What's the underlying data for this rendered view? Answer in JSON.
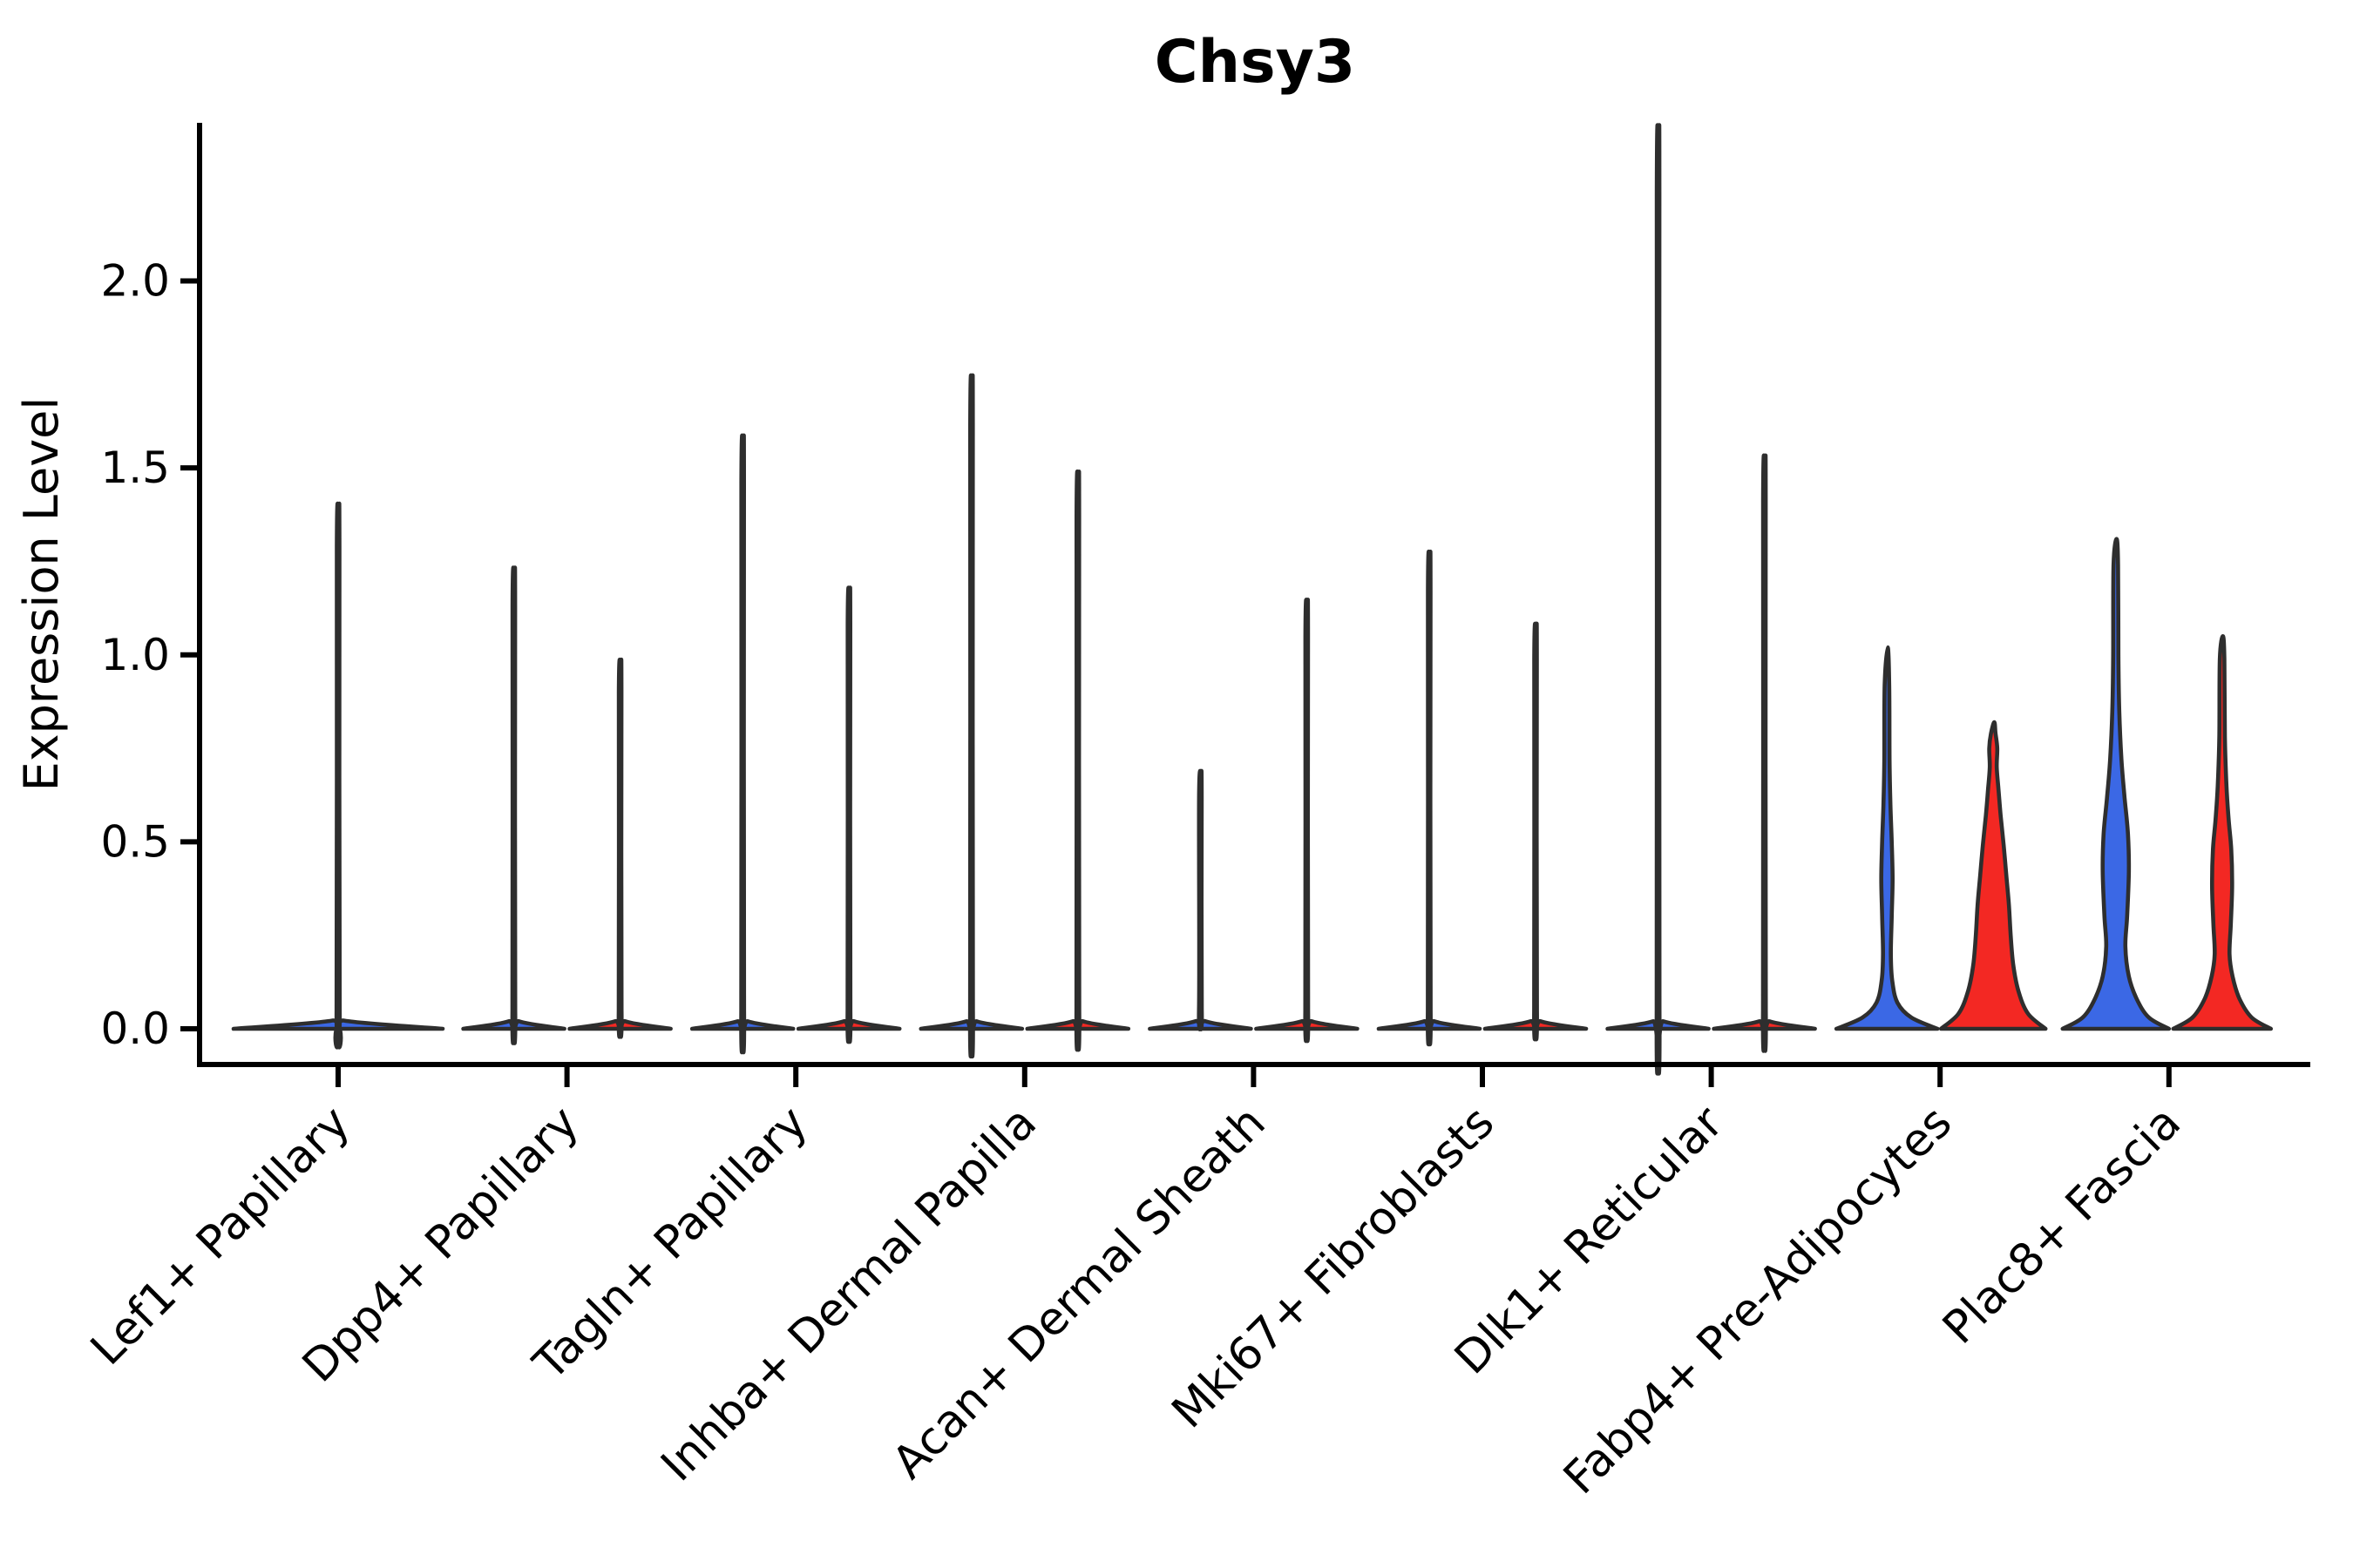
{
  "chart_data": {
    "type": "violin",
    "title": "Chsy3",
    "ylabel": "Expression Level",
    "xlabel": "",
    "ylim": [
      -0.0955,
      2.423
    ],
    "yticks": [
      {
        "value": 0.0,
        "label": "0.0"
      },
      {
        "value": 0.5,
        "label": "0.5"
      },
      {
        "value": 1.0,
        "label": "1.0"
      },
      {
        "value": 1.5,
        "label": "1.5"
      },
      {
        "value": 2.0,
        "label": "2.0"
      }
    ],
    "categories": [
      "Lef1+ Papillary",
      "Dpp4+ Papillary",
      "Tagln+ Papillary",
      "Inhba+ Dermal Papilla",
      "Acan+ Dermal Sheath",
      "Mki67+ Fibroblasts",
      "Dlk1+ Reticular",
      "Fabp4+ Pre-Adipocytes",
      "Plac8+ Fascia"
    ],
    "groups": [
      {
        "id": "blue",
        "color": "#3B68E5"
      },
      {
        "id": "red",
        "color": "#F32823"
      }
    ],
    "outline_color": "#2E2E2E",
    "grid": false,
    "legend": "none",
    "series": [
      {
        "name": "group-1 (blue)",
        "max_expression": [
          1.35,
          1.19,
          1.52,
          1.67,
          0.68,
          1.23,
          2.3,
          1.02,
          1.31
        ]
      },
      {
        "name": "group-2 (red)",
        "max_expression": [
          null,
          0.96,
          1.14,
          1.43,
          1.11,
          1.05,
          1.47,
          0.82,
          1.05
        ]
      }
    ],
    "violins": [
      {
        "category": "Lef1+ Papillary",
        "group": "blue",
        "single": true,
        "peak": 1.35,
        "profile": [
          [
            0,
            120
          ],
          [
            0.022,
            7
          ],
          [
            0.05,
            1.8
          ],
          [
            1.29,
            1.5
          ],
          [
            1.35,
            0.8
          ]
        ]
      },
      {
        "category": "Dpp4+ Papillary",
        "group": "blue",
        "peak": 1.19,
        "profile": [
          [
            0,
            58
          ],
          [
            0.02,
            6
          ],
          [
            0.05,
            1.6
          ],
          [
            1.13,
            1.5
          ],
          [
            1.19,
            0.8
          ]
        ]
      },
      {
        "category": "Dpp4+ Papillary",
        "group": "red",
        "peak": 0.96,
        "profile": [
          [
            0,
            58
          ],
          [
            0.02,
            6
          ],
          [
            0.05,
            1.6
          ],
          [
            0.9,
            1.5
          ],
          [
            0.96,
            0.8
          ]
        ]
      },
      {
        "category": "Tagln+ Papillary",
        "group": "blue",
        "peak": 1.52,
        "profile": [
          [
            0,
            58
          ],
          [
            0.02,
            6
          ],
          [
            0.05,
            1.6
          ],
          [
            1.46,
            1.5
          ],
          [
            1.52,
            0.8
          ]
        ]
      },
      {
        "category": "Tagln+ Papillary",
        "group": "red",
        "peak": 1.14,
        "profile": [
          [
            0,
            58
          ],
          [
            0.02,
            6
          ],
          [
            0.05,
            1.6
          ],
          [
            1.08,
            1.5
          ],
          [
            1.14,
            0.8
          ]
        ]
      },
      {
        "category": "Inhba+ Dermal Papilla",
        "group": "blue",
        "peak": 1.67,
        "profile": [
          [
            0,
            58
          ],
          [
            0.02,
            6
          ],
          [
            0.05,
            1.6
          ],
          [
            1.61,
            1.5
          ],
          [
            1.67,
            0.8
          ]
        ]
      },
      {
        "category": "Inhba+ Dermal Papilla",
        "group": "red",
        "peak": 1.43,
        "profile": [
          [
            0,
            58
          ],
          [
            0.02,
            6
          ],
          [
            0.05,
            1.6
          ],
          [
            1.37,
            1.5
          ],
          [
            1.43,
            0.8
          ]
        ]
      },
      {
        "category": "Acan+ Dermal Sheath",
        "group": "blue",
        "peak": 0.68,
        "profile": [
          [
            0,
            58
          ],
          [
            0.02,
            6
          ],
          [
            0.05,
            1.6
          ],
          [
            0.62,
            1.5
          ],
          [
            0.68,
            0.8
          ]
        ]
      },
      {
        "category": "Acan+ Dermal Sheath",
        "group": "red",
        "peak": 1.11,
        "profile": [
          [
            0,
            58
          ],
          [
            0.02,
            6
          ],
          [
            0.05,
            1.6
          ],
          [
            1.05,
            1.5
          ],
          [
            1.11,
            0.8
          ]
        ]
      },
      {
        "category": "Mki67+ Fibroblasts",
        "group": "blue",
        "peak": 1.23,
        "profile": [
          [
            0,
            58
          ],
          [
            0.02,
            6
          ],
          [
            0.05,
            1.6
          ],
          [
            1.17,
            1.5
          ],
          [
            1.23,
            0.8
          ]
        ]
      },
      {
        "category": "Mki67+ Fibroblasts",
        "group": "red",
        "peak": 1.05,
        "profile": [
          [
            0,
            58
          ],
          [
            0.02,
            6
          ],
          [
            0.05,
            1.6
          ],
          [
            0.99,
            1.5
          ],
          [
            1.05,
            0.8
          ]
        ]
      },
      {
        "category": "Dlk1+ Reticular",
        "group": "blue",
        "peak": 2.3,
        "profile": [
          [
            0,
            58
          ],
          [
            0.02,
            6
          ],
          [
            0.05,
            1.6
          ],
          [
            2.23,
            1.5
          ],
          [
            2.3,
            0.8
          ]
        ]
      },
      {
        "category": "Dlk1+ Reticular",
        "group": "red",
        "peak": 1.47,
        "profile": [
          [
            0,
            58
          ],
          [
            0.02,
            6
          ],
          [
            0.05,
            1.6
          ],
          [
            1.41,
            1.5
          ],
          [
            1.47,
            0.8
          ]
        ]
      },
      {
        "category": "Fabp4+ Pre-Adipocytes",
        "group": "blue",
        "peak": 1.02,
        "profile": [
          [
            0,
            58
          ],
          [
            0.03,
            28
          ],
          [
            0.07,
            12
          ],
          [
            0.13,
            6
          ],
          [
            0.2,
            4.5
          ],
          [
            0.3,
            5.5
          ],
          [
            0.4,
            6.5
          ],
          [
            0.5,
            5.5
          ],
          [
            0.6,
            4
          ],
          [
            0.72,
            3
          ],
          [
            0.92,
            2.6
          ],
          [
            1.02,
            0.9
          ]
        ]
      },
      {
        "category": "Fabp4+ Pre-Adipocytes",
        "group": "red",
        "peak": 0.82,
        "profile": [
          [
            0,
            60
          ],
          [
            0.04,
            40
          ],
          [
            0.1,
            29
          ],
          [
            0.17,
            23
          ],
          [
            0.25,
            20
          ],
          [
            0.33,
            18
          ],
          [
            0.41,
            15
          ],
          [
            0.49,
            12
          ],
          [
            0.57,
            8.5
          ],
          [
            0.64,
            6
          ],
          [
            0.7,
            4
          ],
          [
            0.75,
            4.6
          ],
          [
            0.79,
            2.6
          ],
          [
            0.82,
            1.2
          ]
        ]
      },
      {
        "category": "Plac8+ Fascia",
        "group": "blue",
        "peak": 1.31,
        "profile": [
          [
            0,
            61
          ],
          [
            0.03,
            38
          ],
          [
            0.08,
            24
          ],
          [
            0.14,
            15
          ],
          [
            0.22,
            11
          ],
          [
            0.3,
            13
          ],
          [
            0.42,
            15
          ],
          [
            0.52,
            14
          ],
          [
            0.62,
            10
          ],
          [
            0.72,
            6.5
          ],
          [
            0.85,
            4
          ],
          [
            1.0,
            3
          ],
          [
            1.24,
            2.6
          ],
          [
            1.31,
            0.9
          ]
        ]
      },
      {
        "category": "Plac8+ Fascia",
        "group": "red",
        "peak": 1.05,
        "profile": [
          [
            0,
            56
          ],
          [
            0.03,
            34
          ],
          [
            0.08,
            20
          ],
          [
            0.14,
            12
          ],
          [
            0.2,
            8.5
          ],
          [
            0.28,
            10
          ],
          [
            0.38,
            11.5
          ],
          [
            0.48,
            10.5
          ],
          [
            0.56,
            7.5
          ],
          [
            0.65,
            5
          ],
          [
            0.78,
            3.2
          ],
          [
            0.99,
            2.6
          ],
          [
            1.05,
            0.9
          ]
        ]
      }
    ]
  }
}
